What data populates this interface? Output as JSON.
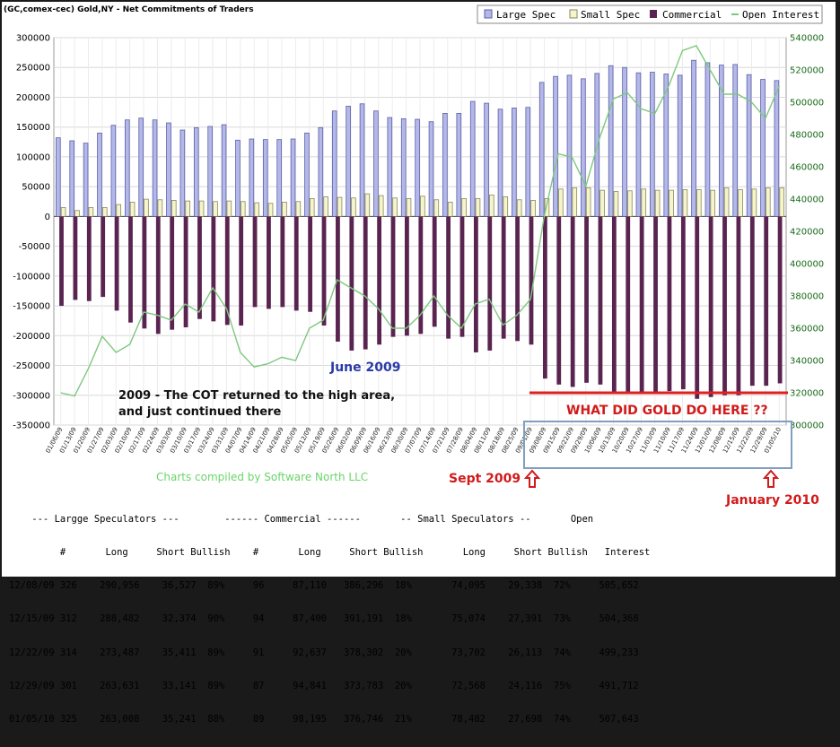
{
  "header": {
    "title": "(GC,comex-cec) Gold,NY - Net Commitments of Traders"
  },
  "legend": {
    "large_spec": "Large Spec",
    "small_spec": "Small Spec",
    "commercial": "Commercial",
    "open_interest": "Open Interest"
  },
  "colors": {
    "large_spec": "#b4b8e8",
    "large_spec_edge": "#5a5ea8",
    "small_spec": "#f6f4cc",
    "small_spec_edge": "#8a8858",
    "commercial": "#5a2450",
    "open_interest": "#7ec87e",
    "red_line": "#e02020",
    "box": "#7f9fc2"
  },
  "annotations": {
    "note_line1": "2009 - The COT returned to the high area,",
    "note_line2": "and just continued there",
    "june_label": "June 2009",
    "gold_question": "WHAT DID GOLD DO HERE ??",
    "sept_label": "Sept 2009",
    "jan_label": "January 2010",
    "credit": "Charts compiled by Software North LLC"
  },
  "chart_data": {
    "type": "bar",
    "title": "(GC,comex-cec) Gold,NY - Net Commitments of Traders",
    "categories": [
      "01/06/09",
      "01/13/09",
      "01/20/09",
      "01/27/09",
      "02/03/09",
      "02/10/09",
      "02/17/09",
      "02/24/09",
      "03/03/09",
      "03/10/09",
      "03/17/09",
      "03/24/09",
      "03/31/09",
      "04/07/09",
      "04/14/09",
      "04/21/09",
      "04/28/09",
      "05/05/09",
      "05/12/09",
      "05/19/09",
      "05/26/09",
      "06/02/09",
      "06/09/09",
      "06/16/09",
      "06/23/09",
      "06/30/09",
      "07/07/09",
      "07/14/09",
      "07/21/09",
      "07/28/09",
      "08/04/09",
      "08/11/09",
      "08/18/09",
      "08/25/09",
      "09/01/09",
      "09/08/09",
      "09/15/09",
      "09/22/09",
      "09/29/09",
      "10/06/09",
      "10/13/09",
      "10/20/09",
      "10/27/09",
      "11/03/09",
      "11/10/09",
      "11/17/09",
      "11/24/09",
      "12/01/09",
      "12/08/09",
      "12/15/09",
      "12/22/09",
      "12/29/09",
      "01/05/10"
    ],
    "series": [
      {
        "name": "Large Spec",
        "axis": "left",
        "values": [
          132000,
          127000,
          123000,
          140000,
          153000,
          162000,
          165000,
          162000,
          157000,
          145000,
          149000,
          151000,
          154000,
          128000,
          130000,
          129000,
          129000,
          130000,
          140000,
          149000,
          177000,
          185000,
          189000,
          177000,
          166000,
          164000,
          163000,
          159000,
          173000,
          173000,
          193000,
          190000,
          180000,
          182000,
          183000,
          225000,
          235000,
          237000,
          231000,
          240000,
          253000,
          250000,
          241000,
          242000,
          239000,
          237000,
          262000,
          258000,
          254000,
          255000,
          238000,
          230000,
          228000
        ]
      },
      {
        "name": "Small Spec",
        "axis": "left",
        "values": [
          15000,
          10000,
          15000,
          15000,
          20000,
          24000,
          29000,
          28000,
          27000,
          26000,
          26000,
          25000,
          26000,
          25000,
          23000,
          22000,
          24000,
          25000,
          30000,
          33000,
          32000,
          31000,
          38000,
          35000,
          31000,
          30000,
          34000,
          28000,
          24000,
          30000,
          30000,
          36000,
          33000,
          28000,
          27000,
          30000,
          46000,
          48000,
          48000,
          44000,
          42000,
          43000,
          46000,
          44000,
          44000,
          45000,
          45000,
          44000,
          48000,
          45000,
          46000,
          48000,
          48000
        ]
      },
      {
        "name": "Commercial",
        "axis": "left",
        "values": [
          -150000,
          -140000,
          -142000,
          -135000,
          -158000,
          -178000,
          -188000,
          -197000,
          -190000,
          -186000,
          -172000,
          -176000,
          -182000,
          -183000,
          -152000,
          -155000,
          -152000,
          -158000,
          -160000,
          -183000,
          -210000,
          -225000,
          -223000,
          -215000,
          -202000,
          -200000,
          -197000,
          -185000,
          -205000,
          -202000,
          -228000,
          -225000,
          -205000,
          -209000,
          -215000,
          -272000,
          -282000,
          -286000,
          -279000,
          -282000,
          -295000,
          -297000,
          -295000,
          -294000,
          -293000,
          -290000,
          -306000,
          -303000,
          -300000,
          -300000,
          -284000,
          -284000,
          -280000
        ]
      },
      {
        "name": "Open Interest",
        "axis": "right",
        "values": [
          320000,
          318000,
          335000,
          355000,
          345000,
          350000,
          370000,
          368000,
          365000,
          375000,
          370000,
          385000,
          372000,
          345000,
          336000,
          338000,
          342000,
          340000,
          360000,
          365000,
          390000,
          385000,
          380000,
          372000,
          360000,
          360000,
          368000,
          380000,
          368000,
          360000,
          375000,
          378000,
          362000,
          368000,
          378000,
          430000,
          468000,
          466000,
          448000,
          478000,
          502000,
          506000,
          496000,
          493000,
          510000,
          532000,
          535000,
          520000,
          505000,
          505000,
          500000,
          490000,
          510000
        ]
      }
    ],
    "ylim": [
      -350000,
      300000
    ],
    "ylim_right": [
      300000,
      540000
    ],
    "left_ticks": [
      300000,
      250000,
      200000,
      150000,
      100000,
      50000,
      0,
      -50000,
      -100000,
      -150000,
      -200000,
      -250000,
      -300000,
      -350000
    ],
    "right_ticks": [
      540000,
      520000,
      500000,
      480000,
      460000,
      440000,
      420000,
      400000,
      380000,
      360000,
      340000,
      320000,
      300000
    ],
    "reference_line": 320000,
    "legend_position": "top-right",
    "grid": true
  },
  "table": {
    "header1": "    --- Largge Speculators ---        ------ Commercial ------       -- Small Speculators --       Open",
    "header2": "         #       Long     Short Bullish    #       Long     Short Bullish       Long     Short Bullish   Interest",
    "rows": [
      "12/08/09 326    290,956    36,527  89%     96     87,110   386,296  18%       74,095    29,338  72%     505,652",
      "12/15/09 312    288,482    32,374  90%     94     87,400   391,191  18%       75,074    27,391  73%     504,368",
      "12/22/09 314    273,487    35,411  89%     91     92,637   378,302  20%       73,702    26,113  74%     499,233",
      "12/29/09 301    263,631    33,141  89%     87     94,841   373,783  20%       72,568    24,116  75%     491,712",
      "01/05/10 325    263,008    35,241  88%     89     98,195   376,746  21%       78,482    27,698  74%     507,643"
    ]
  }
}
